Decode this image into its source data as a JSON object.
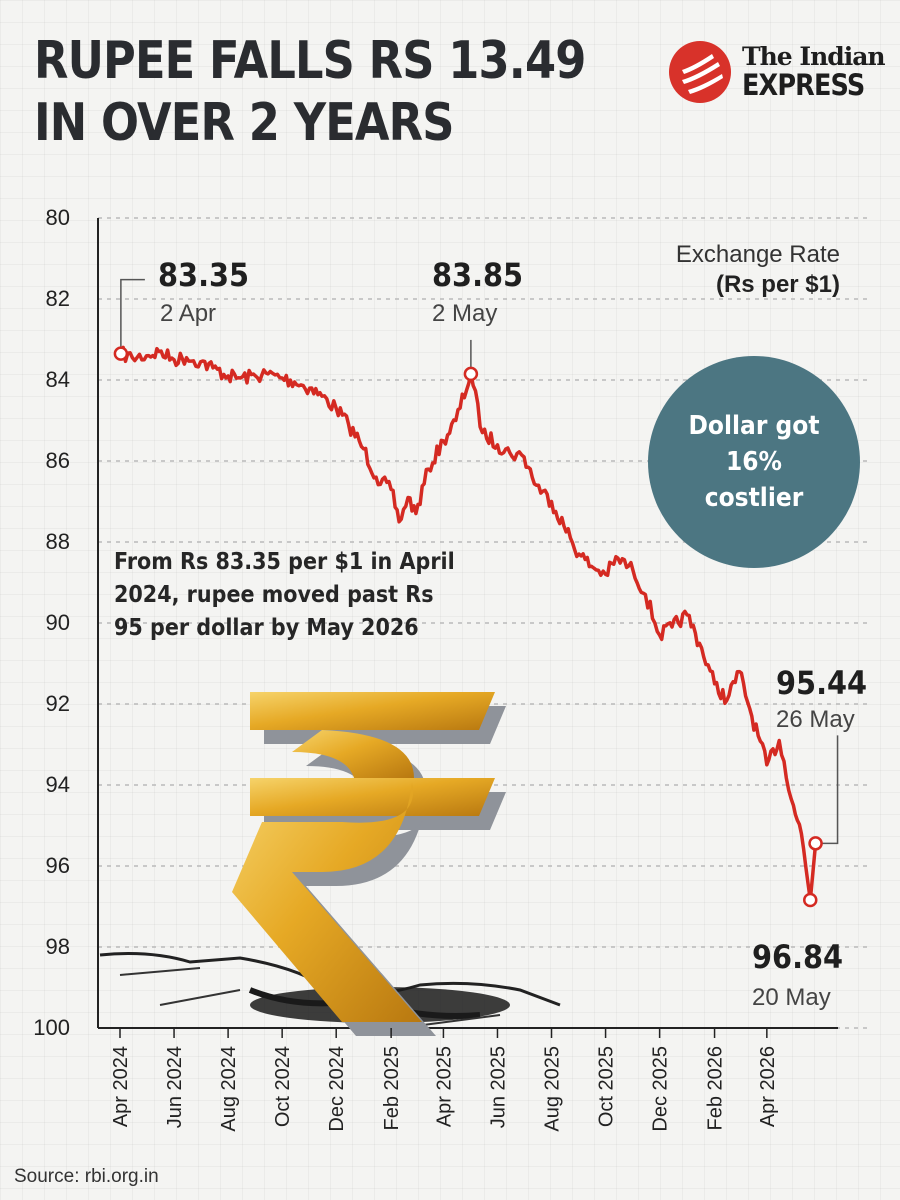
{
  "headline": [
    "RUPEE FALLS RS 13.49",
    "IN OVER 2 YEARS"
  ],
  "logo": {
    "line1": "The Indian",
    "line2": "EXPRESS",
    "icon": "indian-express-flame-logo"
  },
  "rate_title": {
    "line1": "Exchange Rate",
    "line2": "(Rs per $1)"
  },
  "callout": "Dollar got 16% costlier",
  "note": "From Rs 83.35 per $1 in April 2024, rupee moved past Rs 95 per dollar by May 2026",
  "annotations": {
    "start": {
      "value": "83.35",
      "date": "2 Apr"
    },
    "peak": {
      "value": "83.85",
      "date": "2 May"
    },
    "latest": {
      "value": "95.44",
      "date": "26 May"
    },
    "low": {
      "value": "96.84",
      "date": "20 May"
    }
  },
  "source": "Source: rbi.org.in",
  "illustration": "golden-rupee-symbol-on-cracked-ground",
  "colors": {
    "line": "#d42a22",
    "bubble": "#4c7682",
    "text": "#2a2c30"
  },
  "chart_data": {
    "type": "line",
    "ylabel": "",
    "xlabel": "",
    "y_inverted": true,
    "ylim": [
      80,
      100
    ],
    "yticks": [
      80,
      82,
      84,
      86,
      88,
      90,
      92,
      94,
      96,
      98,
      100
    ],
    "xticks": [
      "Apr 2024",
      "Jun 2024",
      "Aug 2024",
      "Oct 2024",
      "Dec 2024",
      "Feb 2025",
      "Apr 2025",
      "Jun 2025",
      "Aug 2025",
      "Oct 2025",
      "Dec 2025",
      "Feb 2026",
      "Apr 2026"
    ],
    "xlim": [
      "2024-04-01",
      "2026-05-31"
    ],
    "grid": true,
    "series": [
      {
        "x": [
          "2024-04-02",
          "2024-04-15",
          "2024-05-01",
          "2024-05-15",
          "2024-06-01",
          "2024-06-15",
          "2024-07-01",
          "2024-07-15",
          "2024-08-01",
          "2024-08-15",
          "2024-09-01",
          "2024-09-15",
          "2024-10-01",
          "2024-10-15",
          "2024-11-01",
          "2024-11-15",
          "2024-12-01",
          "2024-12-15",
          "2025-01-01",
          "2025-01-15",
          "2025-02-01",
          "2025-02-10",
          "2025-02-20",
          "2025-03-01",
          "2025-03-15",
          "2025-04-01",
          "2025-04-15",
          "2025-05-02",
          "2025-05-15",
          "2025-06-01",
          "2025-06-15",
          "2025-07-01",
          "2025-07-15",
          "2025-08-01",
          "2025-08-15",
          "2025-09-01",
          "2025-09-15",
          "2025-10-01",
          "2025-10-15",
          "2025-11-01",
          "2025-11-15",
          "2025-12-01",
          "2025-12-15",
          "2026-01-01",
          "2026-01-15",
          "2026-02-01",
          "2026-02-15",
          "2026-03-01",
          "2026-03-15",
          "2026-04-01",
          "2026-04-15",
          "2026-05-01",
          "2026-05-10",
          "2026-05-20",
          "2026-05-26"
        ],
        "y": [
          83.35,
          83.45,
          83.4,
          83.3,
          83.5,
          83.45,
          83.55,
          83.7,
          83.9,
          83.95,
          83.9,
          83.85,
          83.95,
          84.05,
          84.2,
          84.4,
          84.7,
          85.1,
          85.7,
          86.4,
          86.7,
          87.5,
          86.9,
          87.3,
          86.2,
          85.5,
          85.0,
          83.85,
          85.3,
          85.6,
          85.8,
          85.9,
          86.6,
          87.0,
          87.6,
          88.3,
          88.6,
          88.8,
          88.4,
          88.7,
          89.3,
          90.3,
          90.1,
          89.8,
          90.5,
          91.5,
          91.9,
          91.2,
          92.3,
          93.5,
          92.9,
          94.5,
          95.2,
          96.84,
          95.44
        ]
      }
    ]
  }
}
